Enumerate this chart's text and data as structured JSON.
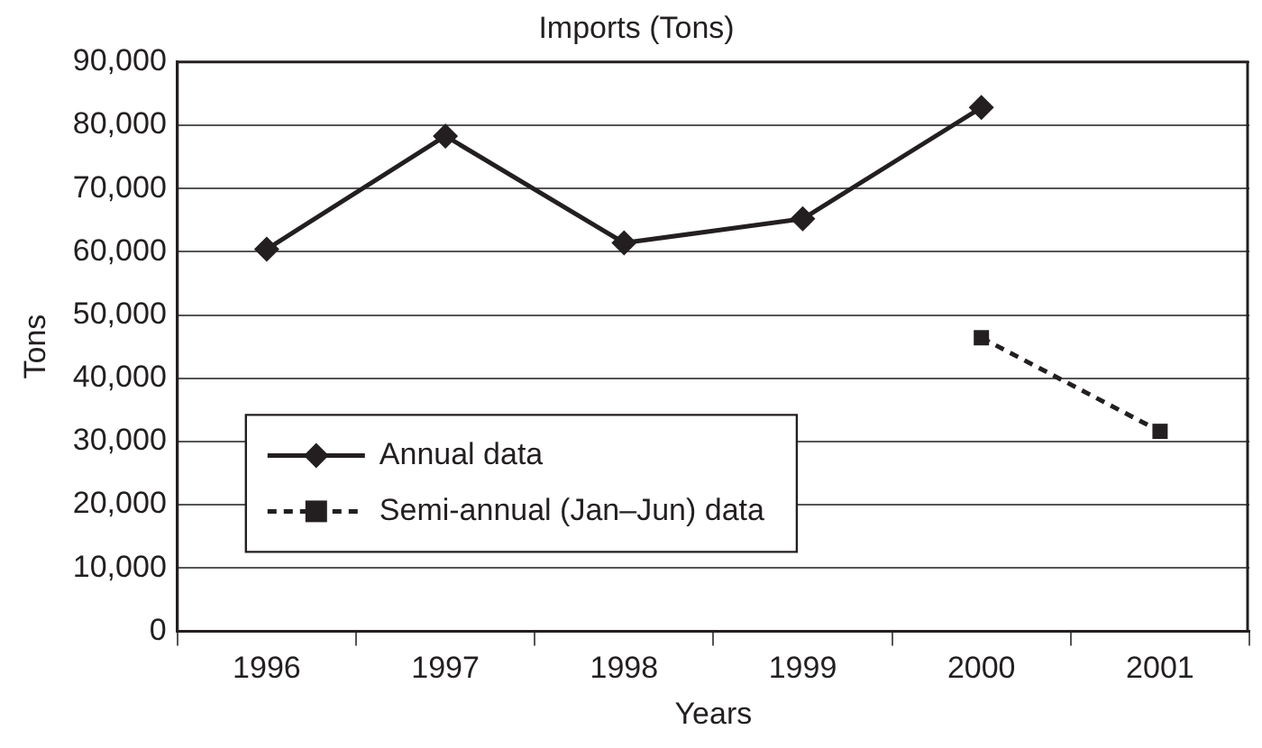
{
  "chart_data": {
    "type": "line",
    "title": "Imports (Tons)",
    "xlabel": "Years",
    "ylabel": "Tons",
    "categories": [
      "1996",
      "1997",
      "1998",
      "1999",
      "2000",
      "2001"
    ],
    "series": [
      {
        "name": "Annual data",
        "color": "#231f20",
        "values": [
          60400,
          78300,
          61400,
          65200,
          82800,
          null
        ],
        "marker": "diamond",
        "line_style": "solid"
      },
      {
        "name": "Semi-annual (Jan–Jun) data",
        "color": "#231f20",
        "values": [
          null,
          null,
          null,
          null,
          46400,
          31600
        ],
        "marker": "square",
        "line_style": "dashed"
      }
    ],
    "ylim": [
      0,
      90000
    ],
    "yticks": [
      0,
      {
        "value": 10000,
        "label": "10,000"
      },
      {
        "value": 20000,
        "label": "20,000"
      },
      {
        "value": 30000,
        "label": "30,000"
      },
      {
        "value": 40000,
        "label": "40,000"
      },
      {
        "value": 50000,
        "label": "50,000"
      },
      {
        "value": 60000,
        "label": "60,000"
      },
      {
        "value": 70000,
        "label": "70,000"
      },
      {
        "value": 80000,
        "label": "80,000"
      },
      {
        "value": 90000,
        "label": "90,000"
      }
    ],
    "grid": "y",
    "legend": "bottom left"
  }
}
